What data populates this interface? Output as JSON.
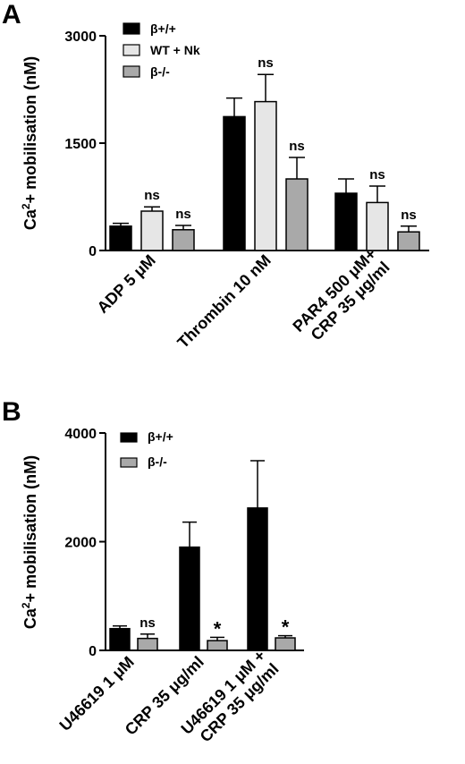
{
  "chart_data": [
    {
      "panel": "A",
      "type": "bar",
      "ylabel_main": "Ca",
      "ylabel_sup": "2",
      "ylabel_rest": "+ mobilisation (nM)",
      "ylim": [
        0,
        3000
      ],
      "yticks": [
        "0",
        "1500",
        "3000"
      ],
      "ytick_values": [
        0,
        1500,
        3000
      ],
      "categories": [
        [
          "ADP 5 μM"
        ],
        [
          "Thrombin 10 nM"
        ],
        [
          "PAR4 500 μM+",
          "CRP 35 μg/ml"
        ]
      ],
      "series": [
        {
          "name": "β+/+",
          "color": "#000000",
          "values": [
            340,
            1870,
            800
          ],
          "errors": [
            40,
            260,
            200
          ],
          "annotations": [
            "",
            "",
            ""
          ]
        },
        {
          "name": "WT + Nk",
          "color": "#e6e6e6",
          "values": [
            550,
            2080,
            670
          ],
          "errors": [
            60,
            380,
            230
          ],
          "annotations": [
            "ns",
            "ns",
            "ns"
          ]
        },
        {
          "name": "β-/-",
          "color": "#a9a9a9",
          "values": [
            290,
            1000,
            260
          ],
          "errors": [
            60,
            300,
            80
          ],
          "annotations": [
            "ns",
            "ns",
            "ns"
          ]
        }
      ],
      "legend_placement": "top-left"
    },
    {
      "panel": "B",
      "type": "bar",
      "ylabel_main": "Ca",
      "ylabel_sup": "2",
      "ylabel_rest": "+ mobilisation (nM)",
      "ylim": [
        0,
        4000
      ],
      "yticks": [
        "0",
        "2000",
        "4000"
      ],
      "ytick_values": [
        0,
        2000,
        4000
      ],
      "categories": [
        [
          "U46619 1 μM"
        ],
        [
          "CRP 35 μg/ml"
        ],
        [
          "U46619 1 μM +",
          "CRP 35 μg/ml"
        ]
      ],
      "series": [
        {
          "name": "β+/+",
          "color": "#000000",
          "values": [
            400,
            1900,
            2620
          ],
          "errors": [
            50,
            460,
            870
          ],
          "annotations": [
            "",
            "",
            ""
          ]
        },
        {
          "name": "β-/-",
          "color": "#a9a9a9",
          "values": [
            220,
            180,
            230
          ],
          "errors": [
            80,
            60,
            40
          ],
          "annotations": [
            "ns",
            "*",
            "*"
          ]
        }
      ],
      "legend_placement": "top-left"
    }
  ]
}
